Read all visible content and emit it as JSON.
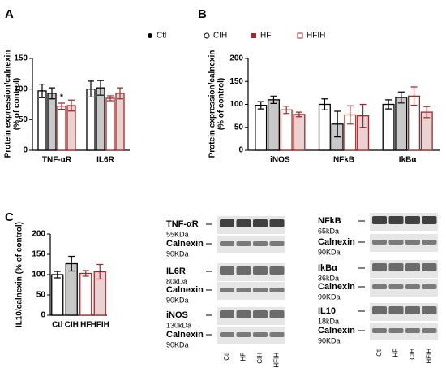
{
  "chart_data": [
    {
      "type": "bar",
      "panel": "A",
      "ylabel": [
        "Protein expression/calnexin",
        "(% of control)"
      ],
      "categories": [
        "TNF-αR",
        "IL6R"
      ],
      "series": [
        {
          "name": "Ctl",
          "color": "#ffffff",
          "edgecolor": "#000000",
          "values": [
            97,
            100
          ],
          "errors": [
            11,
            13
          ]
        },
        {
          "name": "CIH",
          "color": "#c8c8c8",
          "edgecolor": "#000000",
          "values": [
            93,
            102
          ],
          "errors": [
            9,
            12
          ]
        },
        {
          "name": "HF",
          "color": "#ffffff",
          "edgecolor": "#a0282a",
          "values": [
            72,
            85
          ],
          "errors": [
            5,
            4
          ]
        },
        {
          "name": "HFIH",
          "color": "#ead2d2",
          "edgecolor": "#a0282a",
          "values": [
            73,
            93
          ],
          "errors": [
            9,
            9
          ]
        }
      ],
      "annotations": [
        "*"
      ],
      "ylim": [
        0,
        150
      ],
      "yticks": [
        0,
        50,
        100,
        150
      ]
    },
    {
      "type": "bar",
      "panel": "B",
      "ylabel": [
        "Protein expression/calnexin",
        "(% of control)"
      ],
      "categories": [
        "iNOS",
        "NFkB",
        "IkBα"
      ],
      "series": [
        {
          "name": "Ctl",
          "color": "#ffffff",
          "edgecolor": "#000000",
          "values": [
            98,
            100,
            100
          ],
          "errors": [
            8,
            12,
            10
          ]
        },
        {
          "name": "CIH",
          "color": "#c8c8c8",
          "edgecolor": "#000000",
          "values": [
            110,
            57,
            115
          ],
          "errors": [
            8,
            28,
            12
          ]
        },
        {
          "name": "HF",
          "color": "#ffffff",
          "edgecolor": "#a0282a",
          "values": [
            88,
            77,
            118
          ],
          "errors": [
            8,
            20,
            20
          ]
        },
        {
          "name": "HFIH",
          "color": "#ead2d2",
          "edgecolor": "#a0282a",
          "values": [
            78,
            75,
            83
          ],
          "errors": [
            5,
            25,
            12
          ]
        }
      ],
      "ylim": [
        0,
        200
      ],
      "yticks": [
        0,
        50,
        100,
        150,
        200
      ]
    },
    {
      "type": "bar",
      "panel": "C",
      "ylabel": [
        "IL10/calnexin (% of control)"
      ],
      "categories": [
        "Ctl",
        "CIH",
        "HF",
        "HFIH"
      ],
      "values": [
        100,
        127,
        103,
        107
      ],
      "errors": [
        8,
        18,
        7,
        18
      ],
      "colors": [
        "#ffffff",
        "#c8c8c8",
        "#ffffff",
        "#ead2d2"
      ],
      "edgecolors": [
        "#000000",
        "#000000",
        "#a0282a",
        "#a0282a"
      ],
      "ylim": [
        0,
        200
      ],
      "yticks": [
        0,
        50,
        100,
        150,
        200
      ]
    }
  ],
  "blots": {
    "left": [
      {
        "label": "TNF-αR",
        "size": "55KDa"
      },
      {
        "label": "Calnexin",
        "size": "90KDa"
      },
      {
        "label": "IL6R",
        "size": "80kDa"
      },
      {
        "label": "Calnexin",
        "size": "90KDa"
      },
      {
        "label": "iNOS",
        "size": "130kDa"
      },
      {
        "label": "Calnexin",
        "size": "90KDa"
      }
    ],
    "right": [
      {
        "label": "NFkB",
        "size": "65kDa"
      },
      {
        "label": "Calnexin",
        "size": "90KDa"
      },
      {
        "label": "IkBα",
        "size": "36kDa"
      },
      {
        "label": "Calnexin",
        "size": "90KDa"
      },
      {
        "label": "IL10",
        "size": "18kDa"
      },
      {
        "label": "Calnexin",
        "size": "90KDa"
      }
    ],
    "lanes": [
      "Ctl",
      "HF",
      "CIH",
      "HFIH"
    ]
  }
}
